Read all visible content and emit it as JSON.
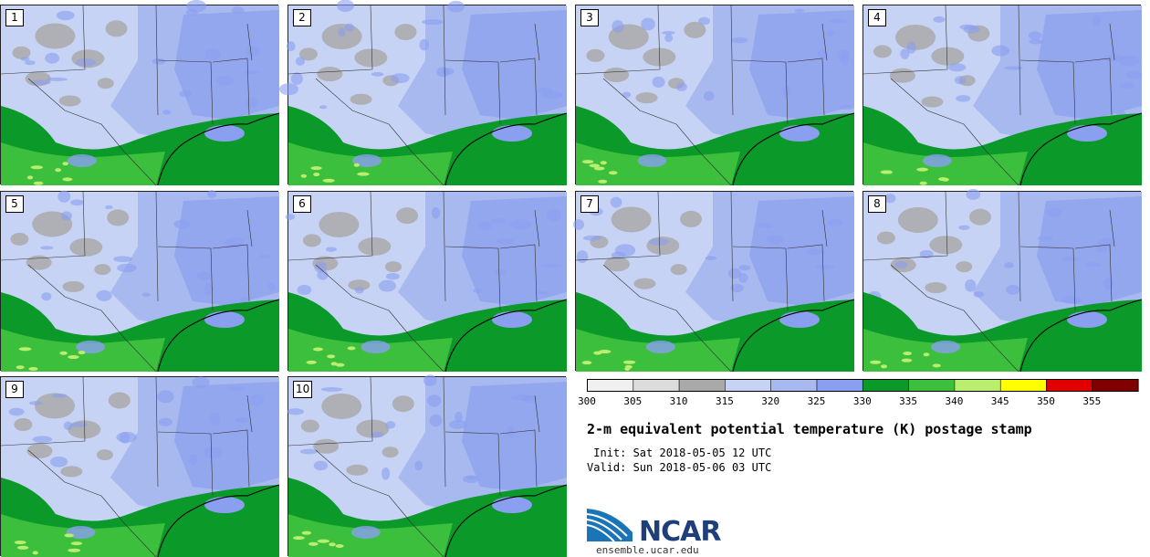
{
  "panels": [
    {
      "label": "1"
    },
    {
      "label": "2"
    },
    {
      "label": "3"
    },
    {
      "label": "4"
    },
    {
      "label": "5"
    },
    {
      "label": "6"
    },
    {
      "label": "7"
    },
    {
      "label": "8"
    },
    {
      "label": "9"
    },
    {
      "label": "10"
    }
  ],
  "colorbar": {
    "ticks": [
      "300",
      "305",
      "310",
      "315",
      "320",
      "325",
      "330",
      "335",
      "340",
      "345",
      "350",
      "355"
    ],
    "colors": [
      "#f0f0f0",
      "#dcdcdc",
      "#a9a9a9",
      "#c6d3f5",
      "#a8b9ef",
      "#8a9ff0",
      "#0b9a2a",
      "#3cbf3c",
      "#b9ee6e",
      "#ffff00",
      "#e00000",
      "#800000"
    ]
  },
  "title": "2-m equivalent potential temperature (K) postage stamp",
  "init": " Init: Sat 2018-05-05 12 UTC",
  "valid": "Valid: Sun 2018-05-06 03 UTC",
  "logo": {
    "text": "NCAR",
    "site": "ensemble.ucar.edu"
  }
}
